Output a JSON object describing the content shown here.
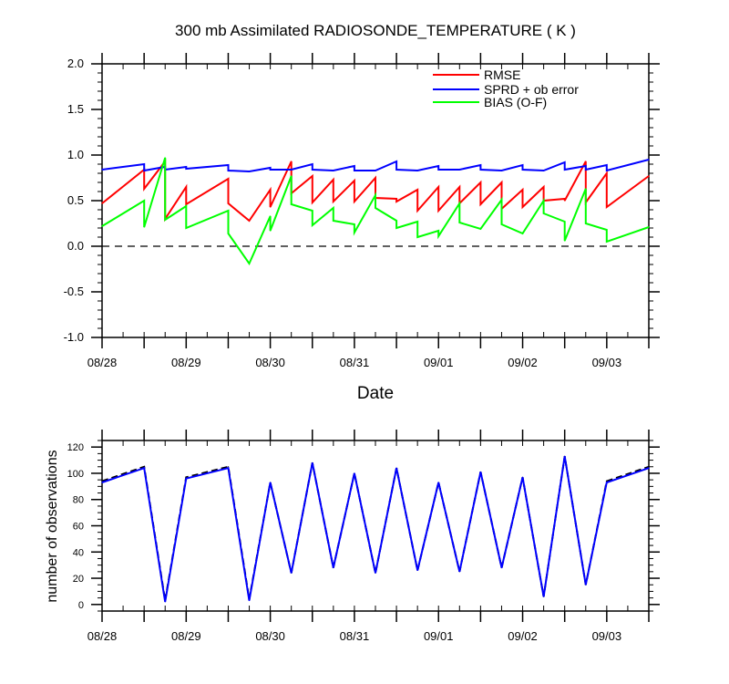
{
  "chart_data": [
    {
      "type": "line",
      "title": "300 mb Assimilated RADIOSONDE_TEMPERATURE ( K )",
      "xlabel": "Date",
      "ylabel": "",
      "ylim": [
        -1.0,
        2.0
      ],
      "yticks": [
        "-1.0",
        "-0.5",
        "0.0",
        "0.5",
        "1.0",
        "1.5",
        "2.0"
      ],
      "ytick_values": [
        -1.0,
        -0.5,
        0.0,
        0.5,
        1.0,
        1.5,
        2.0
      ],
      "xlim": [
        "2016-08-28T00:00",
        "2016-09-03T12:00"
      ],
      "xtick_labels": [
        "08/28",
        "08/29",
        "08/30",
        "08/31",
        "09/01",
        "09/02",
        "09/03"
      ],
      "xtick_values": [
        "2016-08-28T00:00",
        "2016-08-29T00:00",
        "2016-08-30T00:00",
        "2016-08-31T00:00",
        "2016-09-01T00:00",
        "2016-09-02T00:00",
        "2016-09-03T00:00"
      ],
      "legend_position": "top-right",
      "reference_line": {
        "y": 0.0,
        "style": "dashed"
      },
      "series": [
        {
          "name": "RMSE",
          "color": "#ff0000",
          "points": [
            [
              "2016-08-28T00:00",
              0.47
            ],
            [
              "2016-08-28T12:00",
              0.84
            ],
            [
              "2016-08-28T12:00",
              0.63
            ],
            [
              "2016-08-28T18:00",
              0.93
            ],
            [
              "2016-08-28T18:00",
              0.3
            ],
            [
              "2016-08-29T00:00",
              0.65
            ],
            [
              "2016-08-29T00:00",
              0.46
            ],
            [
              "2016-08-29T12:00",
              0.74
            ],
            [
              "2016-08-29T12:00",
              0.47
            ],
            [
              "2016-08-29T18:00",
              0.28
            ],
            [
              "2016-08-29T18:00",
              0.28
            ],
            [
              "2016-08-30T00:00",
              0.62
            ],
            [
              "2016-08-30T00:00",
              0.43
            ],
            [
              "2016-08-30T06:00",
              0.93
            ],
            [
              "2016-08-30T06:00",
              0.58
            ],
            [
              "2016-08-30T12:00",
              0.77
            ],
            [
              "2016-08-30T12:00",
              0.48
            ],
            [
              "2016-08-30T18:00",
              0.73
            ],
            [
              "2016-08-30T18:00",
              0.49
            ],
            [
              "2016-08-31T00:00",
              0.72
            ],
            [
              "2016-08-31T00:00",
              0.49
            ],
            [
              "2016-08-31T06:00",
              0.75
            ],
            [
              "2016-08-31T06:00",
              0.53
            ],
            [
              "2016-08-31T12:00",
              0.52
            ],
            [
              "2016-08-31T12:00",
              0.49
            ],
            [
              "2016-08-31T18:00",
              0.62
            ],
            [
              "2016-08-31T18:00",
              0.39
            ],
            [
              "2016-09-01T00:00",
              0.65
            ],
            [
              "2016-09-01T00:00",
              0.39
            ],
            [
              "2016-09-01T06:00",
              0.65
            ],
            [
              "2016-09-01T06:00",
              0.47
            ],
            [
              "2016-09-01T12:00",
              0.7
            ],
            [
              "2016-09-01T12:00",
              0.46
            ],
            [
              "2016-09-01T18:00",
              0.7
            ],
            [
              "2016-09-01T18:00",
              0.41
            ],
            [
              "2016-09-02T00:00",
              0.62
            ],
            [
              "2016-09-02T00:00",
              0.43
            ],
            [
              "2016-09-02T06:00",
              0.65
            ],
            [
              "2016-09-02T06:00",
              0.5
            ],
            [
              "2016-09-02T12:00",
              0.52
            ],
            [
              "2016-09-02T12:00",
              0.5
            ],
            [
              "2016-09-02T18:00",
              0.93
            ],
            [
              "2016-09-02T18:00",
              0.48
            ],
            [
              "2016-09-03T00:00",
              0.8
            ],
            [
              "2016-09-03T00:00",
              0.43
            ],
            [
              "2016-09-03T12:00",
              0.77
            ]
          ]
        },
        {
          "name": "SPRD + ob error",
          "color": "#0000ff",
          "points": [
            [
              "2016-08-28T00:00",
              0.84
            ],
            [
              "2016-08-28T12:00",
              0.9
            ],
            [
              "2016-08-28T12:00",
              0.83
            ],
            [
              "2016-08-28T18:00",
              0.87
            ],
            [
              "2016-08-28T18:00",
              0.84
            ],
            [
              "2016-08-29T00:00",
              0.87
            ],
            [
              "2016-08-29T00:00",
              0.85
            ],
            [
              "2016-08-29T12:00",
              0.89
            ],
            [
              "2016-08-29T12:00",
              0.83
            ],
            [
              "2016-08-29T18:00",
              0.82
            ],
            [
              "2016-08-29T18:00",
              0.82
            ],
            [
              "2016-08-30T00:00",
              0.86
            ],
            [
              "2016-08-30T00:00",
              0.84
            ],
            [
              "2016-08-30T06:00",
              0.84
            ],
            [
              "2016-08-30T06:00",
              0.84
            ],
            [
              "2016-08-30T12:00",
              0.9
            ],
            [
              "2016-08-30T12:00",
              0.84
            ],
            [
              "2016-08-30T18:00",
              0.83
            ],
            [
              "2016-08-30T18:00",
              0.83
            ],
            [
              "2016-08-31T00:00",
              0.88
            ],
            [
              "2016-08-31T00:00",
              0.83
            ],
            [
              "2016-08-31T06:00",
              0.83
            ],
            [
              "2016-08-31T06:00",
              0.83
            ],
            [
              "2016-08-31T12:00",
              0.93
            ],
            [
              "2016-08-31T12:00",
              0.84
            ],
            [
              "2016-08-31T18:00",
              0.83
            ],
            [
              "2016-08-31T18:00",
              0.83
            ],
            [
              "2016-09-01T00:00",
              0.88
            ],
            [
              "2016-09-01T00:00",
              0.84
            ],
            [
              "2016-09-01T06:00",
              0.84
            ],
            [
              "2016-09-01T06:00",
              0.84
            ],
            [
              "2016-09-01T12:00",
              0.89
            ],
            [
              "2016-09-01T12:00",
              0.84
            ],
            [
              "2016-09-01T18:00",
              0.83
            ],
            [
              "2016-09-01T18:00",
              0.83
            ],
            [
              "2016-09-02T00:00",
              0.89
            ],
            [
              "2016-09-02T00:00",
              0.84
            ],
            [
              "2016-09-02T06:00",
              0.83
            ],
            [
              "2016-09-02T06:00",
              0.83
            ],
            [
              "2016-09-02T12:00",
              0.92
            ],
            [
              "2016-09-02T12:00",
              0.84
            ],
            [
              "2016-09-02T18:00",
              0.88
            ],
            [
              "2016-09-02T18:00",
              0.84
            ],
            [
              "2016-09-03T00:00",
              0.89
            ],
            [
              "2016-09-03T00:00",
              0.83
            ],
            [
              "2016-09-03T12:00",
              0.95
            ]
          ]
        },
        {
          "name": "BIAS (O-F)",
          "color": "#00ff00",
          "points": [
            [
              "2016-08-28T00:00",
              0.22
            ],
            [
              "2016-08-28T12:00",
              0.5
            ],
            [
              "2016-08-28T12:00",
              0.21
            ],
            [
              "2016-08-28T18:00",
              0.97
            ],
            [
              "2016-08-28T18:00",
              0.29
            ],
            [
              "2016-08-29T00:00",
              0.44
            ],
            [
              "2016-08-29T00:00",
              0.2
            ],
            [
              "2016-08-29T12:00",
              0.39
            ],
            [
              "2016-08-29T12:00",
              0.14
            ],
            [
              "2016-08-29T18:00",
              -0.19
            ],
            [
              "2016-08-29T18:00",
              -0.19
            ],
            [
              "2016-08-30T00:00",
              0.33
            ],
            [
              "2016-08-30T00:00",
              0.17
            ],
            [
              "2016-08-30T06:00",
              0.77
            ],
            [
              "2016-08-30T06:00",
              0.46
            ],
            [
              "2016-08-30T12:00",
              0.39
            ],
            [
              "2016-08-30T12:00",
              0.23
            ],
            [
              "2016-08-30T18:00",
              0.42
            ],
            [
              "2016-08-30T18:00",
              0.28
            ],
            [
              "2016-08-31T00:00",
              0.24
            ],
            [
              "2016-08-31T00:00",
              0.15
            ],
            [
              "2016-08-31T06:00",
              0.56
            ],
            [
              "2016-08-31T06:00",
              0.42
            ],
            [
              "2016-08-31T12:00",
              0.28
            ],
            [
              "2016-08-31T12:00",
              0.2
            ],
            [
              "2016-08-31T18:00",
              0.27
            ],
            [
              "2016-08-31T18:00",
              0.1
            ],
            [
              "2016-09-01T00:00",
              0.17
            ],
            [
              "2016-09-01T00:00",
              0.11
            ],
            [
              "2016-09-01T06:00",
              0.47
            ],
            [
              "2016-09-01T06:00",
              0.26
            ],
            [
              "2016-09-01T12:00",
              0.19
            ],
            [
              "2016-09-01T12:00",
              0.19
            ],
            [
              "2016-09-01T18:00",
              0.51
            ],
            [
              "2016-09-01T18:00",
              0.24
            ],
            [
              "2016-09-02T00:00",
              0.14
            ],
            [
              "2016-09-02T00:00",
              0.14
            ],
            [
              "2016-09-02T06:00",
              0.5
            ],
            [
              "2016-09-02T06:00",
              0.36
            ],
            [
              "2016-09-02T12:00",
              0.27
            ],
            [
              "2016-09-02T12:00",
              0.06
            ],
            [
              "2016-09-02T18:00",
              0.63
            ],
            [
              "2016-09-02T18:00",
              0.25
            ],
            [
              "2016-09-03T00:00",
              0.18
            ],
            [
              "2016-09-03T00:00",
              0.05
            ],
            [
              "2016-09-03T12:00",
              0.21
            ]
          ]
        }
      ]
    },
    {
      "type": "line",
      "title": "",
      "xlabel": "",
      "ylabel": "number of observations",
      "ylim": [
        -5,
        125
      ],
      "yticks": [
        "0",
        "20",
        "40",
        "60",
        "80",
        "100",
        "120"
      ],
      "ytick_values": [
        0,
        20,
        40,
        60,
        80,
        100,
        120
      ],
      "xlim": [
        "2016-08-28T00:00",
        "2016-09-03T12:00"
      ],
      "xtick_labels": [
        "08/28",
        "08/29",
        "08/30",
        "08/31",
        "09/01",
        "09/02",
        "09/03"
      ],
      "xtick_values": [
        "2016-08-28T00:00",
        "2016-08-29T00:00",
        "2016-08-30T00:00",
        "2016-08-31T00:00",
        "2016-09-01T00:00",
        "2016-09-02T00:00",
        "2016-09-03T00:00"
      ],
      "series": [
        {
          "color": "#000000",
          "style": "dashed",
          "points": [
            [
              "2016-08-28T00:00",
              94
            ],
            [
              "2016-08-28T12:00",
              105
            ],
            [
              "2016-08-28T18:00",
              3
            ],
            [
              "2016-08-29T00:00",
              97
            ],
            [
              "2016-08-29T12:00",
              105
            ],
            [
              "2016-08-29T18:00",
              4
            ],
            [
              "2016-08-30T00:00",
              93
            ],
            [
              "2016-08-30T06:00",
              24
            ],
            [
              "2016-08-30T12:00",
              108
            ],
            [
              "2016-08-30T18:00",
              28
            ],
            [
              "2016-08-31T00:00",
              100
            ],
            [
              "2016-08-31T06:00",
              24
            ],
            [
              "2016-08-31T12:00",
              104
            ],
            [
              "2016-08-31T18:00",
              26
            ],
            [
              "2016-09-01T00:00",
              93
            ],
            [
              "2016-09-01T06:00",
              25
            ],
            [
              "2016-09-01T12:00",
              101
            ],
            [
              "2016-09-01T18:00",
              28
            ],
            [
              "2016-09-02T00:00",
              97
            ],
            [
              "2016-09-02T06:00",
              6
            ],
            [
              "2016-09-02T12:00",
              113
            ],
            [
              "2016-09-02T18:00",
              15
            ],
            [
              "2016-09-03T00:00",
              94
            ],
            [
              "2016-09-03T12:00",
              105
            ]
          ]
        },
        {
          "color": "#0000ff",
          "style": "solid",
          "points": [
            [
              "2016-08-28T00:00",
              93
            ],
            [
              "2016-08-28T12:00",
              104
            ],
            [
              "2016-08-28T18:00",
              2
            ],
            [
              "2016-08-29T00:00",
              96
            ],
            [
              "2016-08-29T12:00",
              104
            ],
            [
              "2016-08-29T18:00",
              3
            ],
            [
              "2016-08-30T00:00",
              93
            ],
            [
              "2016-08-30T06:00",
              24
            ],
            [
              "2016-08-30T12:00",
              108
            ],
            [
              "2016-08-30T18:00",
              28
            ],
            [
              "2016-08-31T00:00",
              100
            ],
            [
              "2016-08-31T06:00",
              24
            ],
            [
              "2016-08-31T12:00",
              104
            ],
            [
              "2016-08-31T18:00",
              26
            ],
            [
              "2016-09-01T00:00",
              93
            ],
            [
              "2016-09-01T06:00",
              25
            ],
            [
              "2016-09-01T12:00",
              101
            ],
            [
              "2016-09-01T18:00",
              28
            ],
            [
              "2016-09-02T00:00",
              97
            ],
            [
              "2016-09-02T06:00",
              6
            ],
            [
              "2016-09-02T12:00",
              113
            ],
            [
              "2016-09-02T18:00",
              15
            ],
            [
              "2016-09-03T00:00",
              93
            ],
            [
              "2016-09-03T12:00",
              104
            ]
          ]
        }
      ]
    }
  ]
}
